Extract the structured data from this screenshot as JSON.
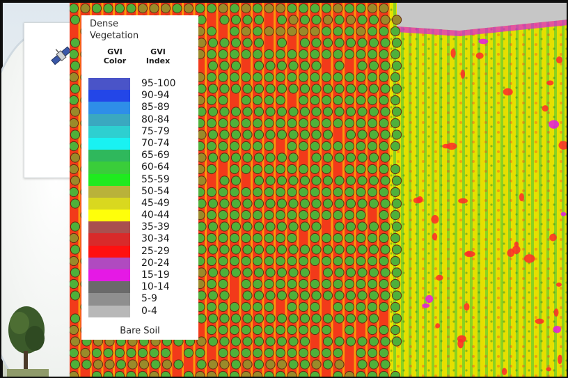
{
  "legend": {
    "title_line1": "Dense",
    "title_line2": "Vegetation",
    "header_color_line1": "GVI",
    "header_color_line2": "Color",
    "header_index_line1": "GVI",
    "header_index_line2": "Index",
    "footer": "Bare Soil",
    "rows": [
      {
        "label": "95-100",
        "color": "#4a54c8"
      },
      {
        "label": "90-94",
        "color": "#2346e8"
      },
      {
        "label": "85-89",
        "color": "#2e8ee8"
      },
      {
        "label": "80-84",
        "color": "#3aa8c0"
      },
      {
        "label": "75-79",
        "color": "#2ecfd0"
      },
      {
        "label": "70-74",
        "color": "#19f2f2"
      },
      {
        "label": "65-69",
        "color": "#2fb85c"
      },
      {
        "label": "60-64",
        "color": "#3acd3a"
      },
      {
        "label": "55-59",
        "color": "#1fea1f"
      },
      {
        "label": "50-54",
        "color": "#b9b23a"
      },
      {
        "label": "45-49",
        "color": "#d9d81f"
      },
      {
        "label": "40-44",
        "color": "#ffff0a"
      },
      {
        "label": "35-39",
        "color": "#a9504f"
      },
      {
        "label": "30-34",
        "color": "#d92a2a"
      },
      {
        "label": "25-29",
        "color": "#ff1010"
      },
      {
        "label": "20-24",
        "color": "#b04ac0"
      },
      {
        "label": "15-19",
        "color": "#e519e5"
      },
      {
        "label": "10-14",
        "color": "#6a6a6a"
      },
      {
        "label": "5-9",
        "color": "#8f8f8f"
      },
      {
        "label": "0-4",
        "color": "#b8b8b8"
      }
    ]
  },
  "field": {
    "crop_circle_fill": "#4fb03a",
    "crop_circle_alt_fill": "#9a8a2a",
    "crop_circle_stroke": "#6a2a10",
    "gap_color": "#ff2a2a",
    "right_section_base": "#e8e000",
    "right_section_stripe": "#3ec63a",
    "top_edge_color": "#c9c9c9"
  }
}
